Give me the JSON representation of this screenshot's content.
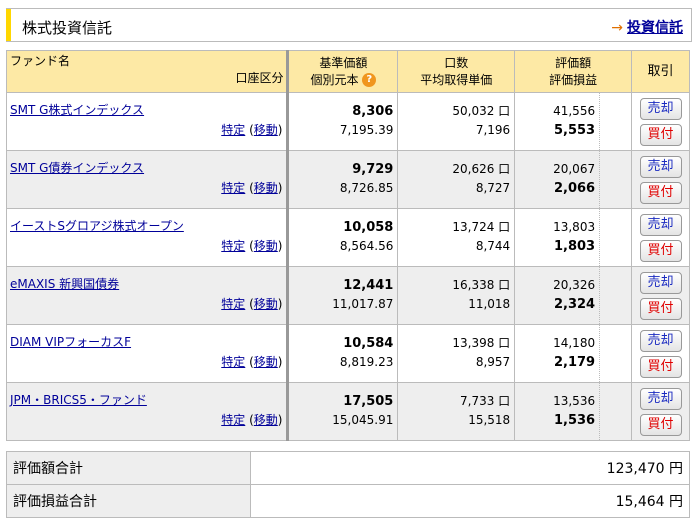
{
  "header": {
    "title": "株式投資信託",
    "link_arrow": "→",
    "link": "投資信託"
  },
  "columns": {
    "fund": "ファンド名",
    "account": "口座区分",
    "nav": "基準価額",
    "cost": "個別元本",
    "units": "口数",
    "avg": "平均取得単価",
    "value": "評価額",
    "pl": "評価損益",
    "trade": "取引",
    "help_icon": "?"
  },
  "buttons": {
    "sell": "売却",
    "buy": "買付"
  },
  "rows": [
    {
      "name": "SMT G株式インデックス",
      "account": "特定",
      "move": "移動",
      "nav": "8,306",
      "cost": "7,195.39",
      "units": "50,032 口",
      "avg": "7,196",
      "value": "41,556",
      "pl": "5,553"
    },
    {
      "name": "SMT G債券インデックス",
      "account": "特定",
      "move": "移動",
      "nav": "9,729",
      "cost": "8,726.85",
      "units": "20,626 口",
      "avg": "8,727",
      "value": "20,067",
      "pl": "2,066"
    },
    {
      "name": "イーストSグロアジ株式オープン",
      "account": "特定",
      "move": "移動",
      "nav": "10,058",
      "cost": "8,564.56",
      "units": "13,724 口",
      "avg": "8,744",
      "value": "13,803",
      "pl": "1,803"
    },
    {
      "name": "eMAXIS 新興国債券",
      "account": "特定",
      "move": "移動",
      "nav": "12,441",
      "cost": "11,017.87",
      "units": "16,338 口",
      "avg": "11,018",
      "value": "20,326",
      "pl": "2,324"
    },
    {
      "name": "DIAM VIPフォーカスF",
      "account": "特定",
      "move": "移動",
      "nav": "10,584",
      "cost": "8,819.23",
      "units": "13,398 口",
      "avg": "8,957",
      "value": "14,180",
      "pl": "2,179"
    },
    {
      "name": "JPM・BRICS5・ファンド",
      "account": "特定",
      "move": "移動",
      "nav": "17,505",
      "cost": "15,045.91",
      "units": "7,733 口",
      "avg": "15,518",
      "value": "13,536",
      "pl": "1,536"
    }
  ],
  "summary": {
    "total_label": "評価額合計",
    "total": "123,470 円",
    "pl_label": "評価損益合計",
    "pl": "15,464 円"
  }
}
